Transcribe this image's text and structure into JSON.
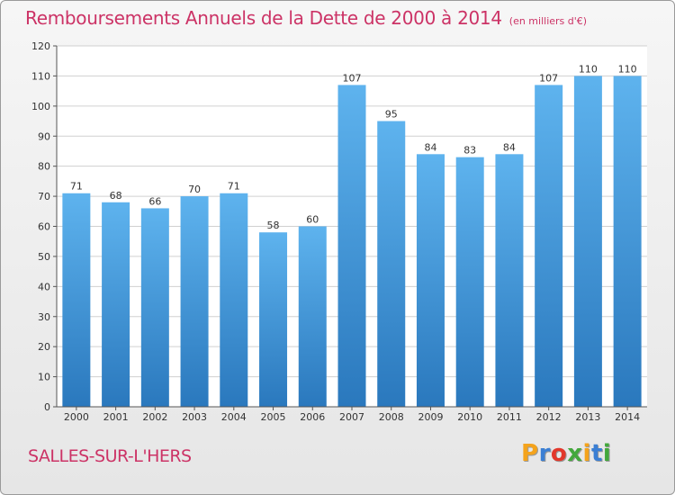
{
  "chart_data": {
    "type": "bar",
    "title": "Remboursements Annuels de la Dette de 2000 à 2014",
    "subtitle": "(en milliers d'€)",
    "categories": [
      "2000",
      "2001",
      "2002",
      "2003",
      "2004",
      "2005",
      "2006",
      "2007",
      "2008",
      "2009",
      "2010",
      "2011",
      "2012",
      "2013",
      "2014"
    ],
    "values": [
      71,
      68,
      66,
      70,
      71,
      58,
      60,
      107,
      95,
      84,
      83,
      84,
      107,
      110,
      110
    ],
    "ylim": [
      0,
      120
    ],
    "yticks": [
      0,
      10,
      20,
      30,
      40,
      50,
      60,
      70,
      80,
      90,
      100,
      110,
      120
    ],
    "grid": true,
    "bar_color": "#4a9ede",
    "data_labels": true
  },
  "commune": "SALLES-SUR-L'HERS",
  "logo": {
    "text": "Proxiti",
    "letters": [
      {
        "ch": "P",
        "color": "#f4a31c"
      },
      {
        "ch": "r",
        "color": "#3b7fd4"
      },
      {
        "ch": "o",
        "color": "#e2382b"
      },
      {
        "ch": "x",
        "color": "#43a83c"
      },
      {
        "ch": "i",
        "color": "#f4a31c"
      },
      {
        "ch": "t",
        "color": "#3b7fd4"
      },
      {
        "ch": "i",
        "color": "#43a83c"
      }
    ]
  },
  "colors": {
    "accent": "#cc3366",
    "axis": "#555555",
    "grid": "#d0d0d0"
  }
}
